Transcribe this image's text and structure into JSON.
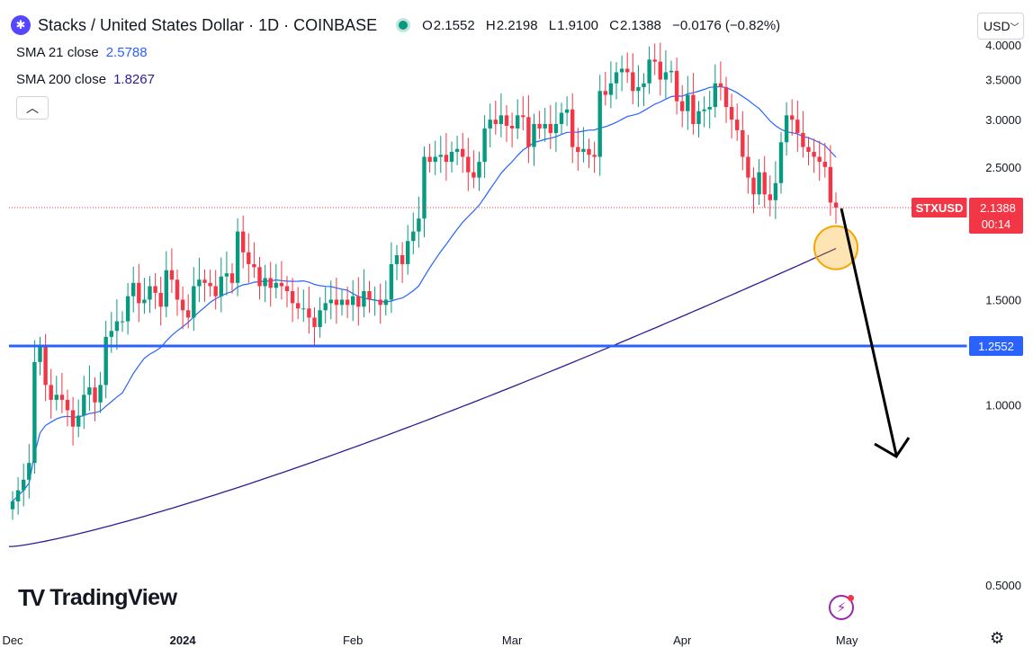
{
  "header": {
    "symbol_icon": "stacks-logo-icon",
    "title": "Stacks / United States Dollar · 1D · COINBASE",
    "ohlc": {
      "o_label": "O",
      "o": "2.1552",
      "h_label": "H",
      "h": "2.2198",
      "l_label": "L",
      "l": "1.9100",
      "c_label": "C",
      "c": "2.1388",
      "change": "−0.0176 (−0.82%)"
    },
    "currency": "USD",
    "currency_icon": "chevron-down-icon"
  },
  "indicators": [
    {
      "label": "SMA 21 close",
      "value": "2.5788",
      "color": "#2962ff"
    },
    {
      "label": "SMA 200 close",
      "value": "1.8267",
      "color": "#311b92"
    }
  ],
  "collapse_icon": "chevron-up-icon",
  "brand": {
    "mark": "TV",
    "name": "TradingView"
  },
  "colors": {
    "up": "#089981",
    "down": "#f23645",
    "support": "#2962ff",
    "highlight": "#f7a600"
  },
  "chart_data": {
    "type": "candlestick",
    "symbol": "STXUSD",
    "interval": "1D",
    "y_scale": "log",
    "ylim": [
      0.45,
      4.05
    ],
    "y_ticks": [
      "4.0000",
      "3.5000",
      "3.0000",
      "2.5000",
      "2.0000",
      "1.5000",
      "1.0000",
      "0.5000"
    ],
    "y_tick_values": [
      4.0,
      3.5,
      3.0,
      2.5,
      2.0,
      1.5,
      1.0,
      0.5
    ],
    "x_ticks": [
      {
        "label": "Dec",
        "index": 0
      },
      {
        "label": "2024",
        "index": 31
      },
      {
        "label": "Feb",
        "index": 62
      },
      {
        "label": "Mar",
        "index": 91
      },
      {
        "label": "Apr",
        "index": 122
      },
      {
        "label": "May",
        "index": 152
      }
    ],
    "last_price": {
      "label": "STXUSD",
      "value": "2.1388",
      "countdown": "00:14"
    },
    "support_level": {
      "value": 1.2552,
      "label": "1.2552"
    },
    "closes": [
      0.69,
      0.72,
      0.75,
      0.8,
      1.18,
      1.25,
      1.08,
      1.02,
      1.04,
      1.02,
      0.98,
      0.92,
      0.96,
      1.04,
      1.07,
      1.01,
      1.08,
      1.3,
      1.33,
      1.38,
      1.38,
      1.52,
      1.6,
      1.48,
      1.5,
      1.58,
      1.54,
      1.46,
      1.68,
      1.62,
      1.5,
      1.44,
      1.4,
      1.58,
      1.62,
      1.6,
      1.58,
      1.52,
      1.64,
      1.66,
      1.6,
      1.95,
      1.8,
      1.72,
      1.7,
      1.58,
      1.63,
      1.57,
      1.6,
      1.58,
      1.55,
      1.48,
      1.45,
      1.45,
      1.4,
      1.35,
      1.44,
      1.48,
      1.5,
      1.47,
      1.5,
      1.47,
      1.52,
      1.46,
      1.55,
      1.5,
      1.5,
      1.47,
      1.5,
      1.72,
      1.78,
      1.72,
      1.88,
      1.95,
      2.05,
      2.6,
      2.55,
      2.6,
      2.62,
      2.55,
      2.65,
      2.68,
      2.6,
      2.45,
      2.4,
      2.55,
      2.9,
      3.0,
      2.95,
      3.05,
      2.93,
      2.9,
      3.05,
      3.03,
      2.7,
      2.95,
      2.9,
      2.95,
      2.85,
      2.95,
      3.08,
      3.12,
      2.7,
      2.65,
      2.68,
      2.62,
      2.6,
      3.35,
      3.3,
      3.45,
      3.6,
      3.65,
      3.6,
      3.35,
      3.4,
      3.45,
      3.78,
      3.75,
      3.5,
      3.6,
      3.62,
      3.22,
      3.1,
      3.3,
      2.95,
      3.1,
      3.12,
      3.15,
      3.45,
      3.4,
      3.15,
      3.0,
      2.88,
      2.6,
      2.4,
      2.25,
      2.45,
      2.25,
      2.2,
      2.35,
      2.75,
      3.05,
      3.0,
      2.85,
      2.7,
      2.65,
      2.6,
      2.55,
      2.5,
      2.18,
      2.1388
    ],
    "series": [
      {
        "name": "SMA 21 close",
        "last": 2.5788
      },
      {
        "name": "SMA 200 close",
        "last": 1.8267
      }
    ]
  }
}
